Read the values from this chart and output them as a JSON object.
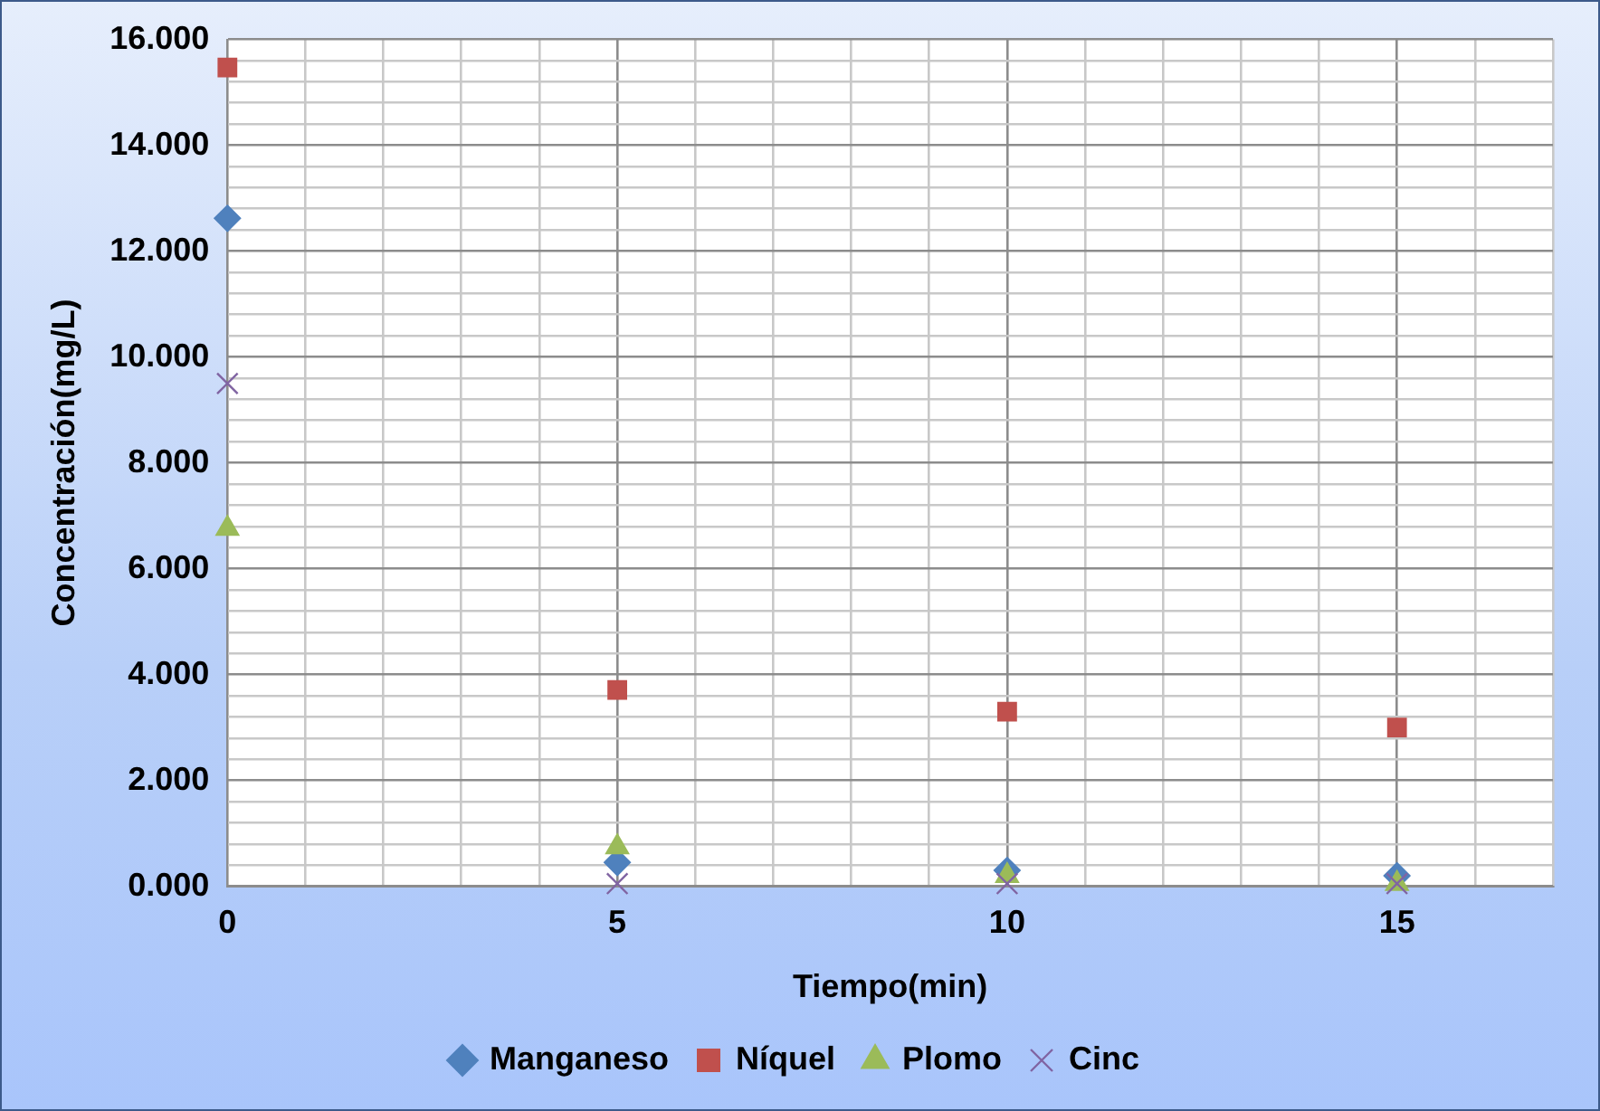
{
  "chart_data": {
    "type": "scatter",
    "xlabel": "Tiempo(min)",
    "ylabel": "Concentración(mg/L)",
    "x": [
      0,
      5,
      10,
      15
    ],
    "series": [
      {
        "name": "Manganeso",
        "color": "#4f81bd",
        "marker": "diamond",
        "values": [
          12.62,
          0.45,
          0.3,
          0.2
        ]
      },
      {
        "name": "Níquel",
        "color": "#c0504d",
        "marker": "square",
        "values": [
          15.47,
          3.71,
          3.3,
          3.0
        ]
      },
      {
        "name": "Plomo",
        "color": "#9bbb59",
        "marker": "triangle",
        "values": [
          6.76,
          0.74,
          0.2,
          0.05
        ]
      },
      {
        "name": "Cinc",
        "color": "#8064a2",
        "marker": "cross",
        "values": [
          9.5,
          0.05,
          0.05,
          0.05
        ]
      }
    ],
    "xlim": [
      0,
      17
    ],
    "xticks": [
      0,
      {
        "value": 1,
        "label": null
      },
      {
        "value": 2,
        "label": null
      },
      {
        "value": 3,
        "label": null
      },
      {
        "value": 4,
        "label": null
      },
      5,
      {
        "value": 6,
        "label": null
      },
      {
        "value": 7,
        "label": null
      },
      {
        "value": 8,
        "label": null
      },
      {
        "value": 9,
        "label": null
      },
      10,
      {
        "value": 11,
        "label": null
      },
      {
        "value": 12,
        "label": null
      },
      {
        "value": 13,
        "label": null
      },
      {
        "value": 14,
        "label": null
      },
      15,
      {
        "value": 16,
        "label": null
      },
      {
        "value": 17,
        "label": null
      }
    ],
    "ylim": [
      0,
      16
    ],
    "yticks": [
      {
        "value": 0,
        "label": "0.000"
      },
      {
        "value": 0.4,
        "label": null
      },
      {
        "value": 0.8,
        "label": null
      },
      {
        "value": 1.2,
        "label": null
      },
      {
        "value": 1.6,
        "label": null
      },
      {
        "value": 2,
        "label": "2.000"
      },
      {
        "value": 2.4,
        "label": null
      },
      {
        "value": 2.8,
        "label": null
      },
      {
        "value": 3.2,
        "label": null
      },
      {
        "value": 3.6,
        "label": null
      },
      {
        "value": 4,
        "label": "4.000"
      },
      {
        "value": 4.4,
        "label": null
      },
      {
        "value": 4.8,
        "label": null
      },
      {
        "value": 5.2,
        "label": null
      },
      {
        "value": 5.6,
        "label": null
      },
      {
        "value": 6,
        "label": "6.000"
      },
      {
        "value": 6.4,
        "label": null
      },
      {
        "value": 6.8,
        "label": null
      },
      {
        "value": 7.2,
        "label": null
      },
      {
        "value": 7.6,
        "label": null
      },
      {
        "value": 8,
        "label": "8.000"
      },
      {
        "value": 8.4,
        "label": null
      },
      {
        "value": 8.8,
        "label": null
      },
      {
        "value": 9.2,
        "label": null
      },
      {
        "value": 9.6,
        "label": null
      },
      {
        "value": 10,
        "label": "10.000"
      },
      {
        "value": 10.4,
        "label": null
      },
      {
        "value": 10.8,
        "label": null
      },
      {
        "value": 11.2,
        "label": null
      },
      {
        "value": 11.6,
        "label": null
      },
      {
        "value": 12,
        "label": "12.000"
      },
      {
        "value": 12.4,
        "label": null
      },
      {
        "value": 12.8,
        "label": null
      },
      {
        "value": 13.2,
        "label": null
      },
      {
        "value": 13.6,
        "label": null
      },
      {
        "value": 14,
        "label": "14.000"
      },
      {
        "value": 14.4,
        "label": null
      },
      {
        "value": 14.8,
        "label": null
      },
      {
        "value": 15.2,
        "label": null
      },
      {
        "value": 15.6,
        "label": null
      },
      {
        "value": 16,
        "label": "16.000"
      }
    ],
    "grid": true,
    "legend": "bottom"
  }
}
